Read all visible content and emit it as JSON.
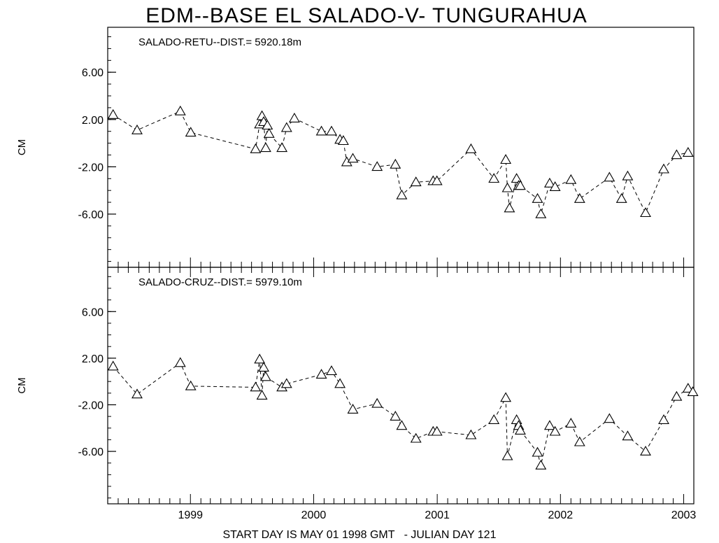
{
  "chart_data": {
    "type": "line",
    "title": "EDM--BASE EL SALADO-V- TUNGURAHUA",
    "xlabel": "START DAY IS MAY 01 1998 GMT   - JULIAN DAY 121",
    "x_tick_labels": [
      "1999",
      "2000",
      "2001",
      "2002",
      "2003"
    ],
    "xlim": [
      "1998-05-01",
      "2003-01-31"
    ],
    "panels": [
      {
        "label": "SALADO-RETU--DIST.= 5920.18m",
        "ylabel": "CM",
        "ylim": [
          -10.5,
          9.8
        ],
        "yticks": [
          "6.00",
          "2.00",
          "-2.00",
          "-6.00"
        ],
        "marker": "triangle",
        "line": "dashed",
        "x": [
          "1998-05-17",
          "1998-07-27",
          "1998-12-02",
          "1999-01-02",
          "1999-07-13",
          "1999-07-25",
          "1999-08-01",
          "1999-08-06",
          "1999-08-12",
          "1999-08-17",
          "1999-08-22",
          "1999-09-29",
          "1999-10-13",
          "1999-11-05",
          "2000-01-24",
          "2000-02-23",
          "2000-03-19",
          "2000-03-29",
          "2000-04-08",
          "2000-04-26",
          "2000-07-07",
          "2000-08-30",
          "2000-09-18",
          "2000-10-30",
          "2000-12-20",
          "2000-12-31",
          "2001-04-11",
          "2001-06-18",
          "2001-07-23",
          "2001-07-28",
          "2001-08-03",
          "2001-08-24",
          "2001-08-30",
          "2001-09-04",
          "2001-10-25",
          "2001-11-04",
          "2001-11-30",
          "2001-12-16",
          "2002-02-01",
          "2002-02-27",
          "2002-05-26",
          "2002-07-01",
          "2002-07-19",
          "2002-09-10",
          "2002-11-03",
          "2002-12-11",
          "2003-01-14"
        ],
        "y": [
          2.4,
          1.1,
          2.7,
          0.9,
          -0.5,
          1.6,
          2.3,
          1.8,
          -0.4,
          1.5,
          0.8,
          -0.4,
          1.3,
          2.1,
          1.0,
          1.0,
          0.3,
          0.2,
          -1.6,
          -1.3,
          -2.0,
          -1.8,
          -4.4,
          -3.3,
          -3.2,
          -3.2,
          -0.5,
          -3.0,
          -1.4,
          -3.8,
          -5.5,
          -3.0,
          -3.6,
          -3.6,
          -4.7,
          -6.0,
          -3.4,
          -3.7,
          -3.1,
          -4.7,
          -2.9,
          -4.7,
          -2.8,
          -5.9,
          -2.2,
          -1.0,
          -0.8
        ]
      },
      {
        "label": "SALADO-CRUZ--DIST.= 5979.10m",
        "ylabel": "CM",
        "ylim": [
          -10.5,
          9.8
        ],
        "yticks": [
          "6.00",
          "2.00",
          "-2.00",
          "-6.00"
        ],
        "marker": "triangle",
        "line": "dashed",
        "x": [
          "1998-05-17",
          "1998-07-27",
          "1998-12-02",
          "1999-01-02",
          "1999-07-13",
          "1999-07-25",
          "1999-08-01",
          "1999-08-06",
          "1999-08-12",
          "1999-09-29",
          "1999-10-13",
          "2000-01-24",
          "2000-02-23",
          "2000-03-19",
          "2000-04-26",
          "2000-07-07",
          "2000-08-30",
          "2000-09-18",
          "2000-10-30",
          "2000-12-20",
          "2000-12-31",
          "2001-04-11",
          "2001-06-18",
          "2001-07-23",
          "2001-07-28",
          "2001-08-24",
          "2001-08-30",
          "2001-09-04",
          "2001-10-25",
          "2001-11-04",
          "2001-11-30",
          "2001-12-16",
          "2002-02-01",
          "2002-02-27",
          "2002-05-26",
          "2002-07-19",
          "2002-09-10",
          "2002-11-03",
          "2002-12-11",
          "2003-01-14",
          "2003-01-28"
        ],
        "y": [
          1.3,
          -1.1,
          1.6,
          -0.4,
          -0.5,
          1.9,
          -1.2,
          1.2,
          0.4,
          -0.5,
          -0.2,
          0.6,
          0.9,
          -0.2,
          -2.4,
          -1.9,
          -3.0,
          -3.8,
          -4.9,
          -4.3,
          -4.3,
          -4.6,
          -3.3,
          -1.4,
          -6.4,
          -3.3,
          -3.8,
          -4.2,
          -6.1,
          -7.2,
          -3.8,
          -4.3,
          -3.6,
          -5.2,
          -3.2,
          -4.7,
          -6.0,
          -3.3,
          -1.3,
          -0.6,
          -0.9
        ]
      }
    ]
  }
}
